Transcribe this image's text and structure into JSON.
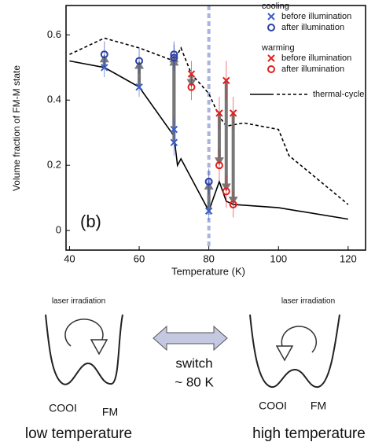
{
  "chart_data": {
    "type": "scatter",
    "x_label": "Temperature (K)",
    "y_label": "Volume fraction of FM-M state",
    "panel_label": "(b)",
    "xlim": [
      39,
      125
    ],
    "ylim": [
      -0.06,
      0.69
    ],
    "xticks": [
      40,
      60,
      80,
      100,
      120
    ],
    "yticks": [
      0,
      0.2,
      0.4,
      0.6
    ],
    "vline": 80,
    "vline_color": "#aab4dc",
    "line_legend": "thermal-cycle",
    "lines": [
      {
        "style": "solid",
        "color": "#000000",
        "x": [
          40,
          50,
          60,
          70,
          71,
          72,
          80,
          83,
          85,
          87,
          100,
          120
        ],
        "values": [
          0.52,
          0.5,
          0.44,
          0.29,
          0.2,
          0.22,
          0.06,
          0.15,
          0.09,
          0.08,
          0.07,
          0.035
        ]
      },
      {
        "style": "dashed",
        "color": "#000000",
        "x": [
          40,
          50,
          60,
          70,
          72,
          75,
          80,
          83,
          85,
          90,
          100,
          103,
          120
        ],
        "values": [
          0.54,
          0.59,
          0.56,
          0.52,
          0.56,
          0.48,
          0.42,
          0.35,
          0.32,
          0.33,
          0.31,
          0.23,
          0.08
        ]
      }
    ],
    "groups": [
      {
        "name": "cooling",
        "series": [
          {
            "name": "before illumination",
            "marker": "x",
            "color": "#3a5fc8",
            "x": [
              50,
              60,
              70,
              70,
              80
            ],
            "values": [
              0.5,
              0.44,
              0.31,
              0.27,
              0.06
            ],
            "errors": [
              0.03,
              0.03,
              0.04,
              0.04,
              0.03
            ]
          },
          {
            "name": "after illumination",
            "marker": "o",
            "color": "#2a3fa8",
            "x": [
              50,
              60,
              70,
              70,
              80
            ],
            "values": [
              0.54,
              0.52,
              0.54,
              0.53,
              0.15
            ],
            "errors": [
              0.04,
              0.04,
              0.04,
              0.04,
              0.04
            ]
          }
        ]
      },
      {
        "name": "warming",
        "series": [
          {
            "name": "before illumination",
            "marker": "x",
            "color": "#e02020",
            "x": [
              75,
              83,
              85,
              87
            ],
            "values": [
              0.48,
              0.36,
              0.46,
              0.36
            ],
            "errors": [
              0.04,
              0.05,
              0.06,
              0.05
            ]
          },
          {
            "name": "after illumination",
            "marker": "o",
            "color": "#e02020",
            "x": [
              75,
              83,
              85,
              87
            ],
            "values": [
              0.44,
              0.2,
              0.12,
              0.08
            ],
            "errors": [
              0.04,
              0.05,
              0.05,
              0.04
            ]
          }
        ]
      }
    ]
  },
  "diagram": {
    "left": {
      "caption": "laser irradiation",
      "left_state": "COOI",
      "right_state": "FM",
      "label": "low temperature"
    },
    "right": {
      "caption": "laser irradiation",
      "left_state": "COOI",
      "right_state": "FM",
      "label": "high temperature"
    },
    "switch": "switch",
    "switch_temp": "~ 80 K"
  }
}
